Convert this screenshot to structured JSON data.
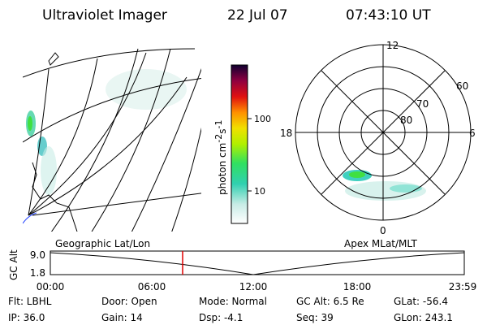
{
  "header": {
    "title": "Ultraviolet Imager",
    "date": "22 Jul 07",
    "time": "07:43:10 UT"
  },
  "colorbar": {
    "label": "photon cm",
    "exp1": "-2",
    "unit2": "s",
    "exp2": "-1",
    "ticks": [
      "100",
      "10"
    ]
  },
  "polar": {
    "mlt_labels": [
      "12",
      "18",
      "6",
      "0"
    ],
    "lat_labels": [
      "60",
      "70",
      "80"
    ]
  },
  "maps": {
    "left_label": "Geographic Lat/Lon",
    "right_label": "Apex MLat/MLT"
  },
  "timeline": {
    "axis_label": "GC Alt",
    "y_labels": [
      "9.0",
      "1.8"
    ],
    "times": [
      "00:00",
      "06:00",
      "12:00",
      "18:00",
      "23:59"
    ]
  },
  "footer": {
    "rows": [
      [
        "Flt: LBHL",
        "Door: Open",
        "Mode: Normal",
        "GC Alt: 6.5 Re",
        "GLat: -56.4"
      ],
      [
        "IP: 36.0",
        "Gain: 14",
        "Dsp:   -4.1",
        "Seq: 39",
        "GLon: 243.1"
      ]
    ]
  }
}
